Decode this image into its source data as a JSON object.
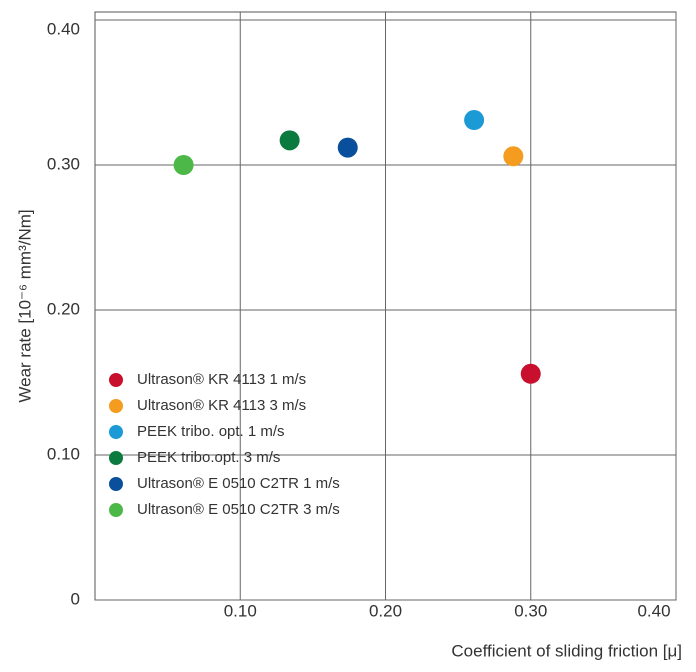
{
  "chart_data": {
    "type": "scatter",
    "x_label": "Coefficient of sliding friction [μ]",
    "y_label": "Wear rate [10⁻⁶ mm³/Nm]",
    "xlim": [
      0,
      0.4
    ],
    "ylim": [
      0,
      0.4
    ],
    "xticks": [
      {
        "value": 0.1,
        "label": "0.10"
      },
      {
        "value": 0.2,
        "label": "0.20"
      },
      {
        "value": 0.3,
        "label": "0.30"
      },
      {
        "value": 0.4,
        "label": "0.40"
      }
    ],
    "yticks": [
      0,
      {
        "value": 0.1,
        "label": "0.10"
      },
      {
        "value": 0.2,
        "label": "0.20"
      },
      {
        "value": 0.3,
        "label": "0.30"
      },
      {
        "value": 0.4,
        "label": "0.40"
      }
    ],
    "grid": true,
    "legend": "left",
    "series": [
      {
        "name": "Ultrason® KR 4113 1 m/s",
        "color": "#c8102e",
        "x": [
          0.3
        ],
        "values": [
          0.156
        ]
      },
      {
        "name": "Ultrason® KR 4113 3 m/s",
        "color": "#f39c1f",
        "x": [
          0.288
        ],
        "values": [
          0.306
        ]
      },
      {
        "name": "PEEK tribo. opt. 1 m/s",
        "color": "#1b9ad6",
        "x": [
          0.261
        ],
        "values": [
          0.331
        ]
      },
      {
        "name": "PEEK tribo.opt. 3 m/s",
        "color": "#0b7a3e",
        "x": [
          0.134
        ],
        "values": [
          0.317
        ]
      },
      {
        "name": "Ultrason® E 0510 C2TR 1 m/s",
        "color": "#0a4f9c",
        "x": [
          0.174
        ],
        "values": [
          0.312
        ]
      },
      {
        "name": "Ultrason® E 0510 C2TR 3 m/s",
        "color": "#4cb848",
        "x": [
          0.061
        ],
        "values": [
          0.3
        ]
      }
    ]
  }
}
